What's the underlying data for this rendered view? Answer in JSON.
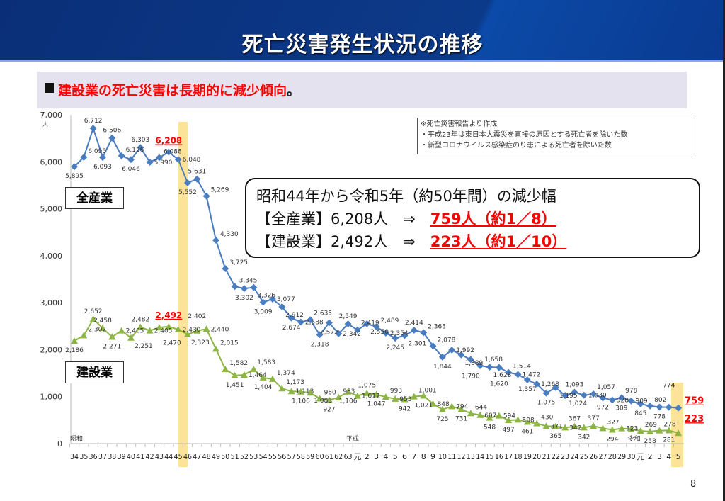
{
  "header": {
    "title": "死亡災害発生状況の推移"
  },
  "subtitle": {
    "text": "建設業の死亡災害は長期的に減少傾向",
    "period": "。"
  },
  "note": {
    "lines": [
      "※死亡災害報告より作成",
      "・平成23年は東日本大震災を直接の原因とする死亡者を除いた数",
      "・新型コロナウイルス感染症のり患による死亡者を除いた数"
    ]
  },
  "series_labels": {
    "all": "全産業",
    "construction": "建設業"
  },
  "summary": {
    "line1": "昭和44年から令和5年（約50年間）の減少幅",
    "line2_prefix": "【全産業】6,208人　⇒　",
    "line2_highlight": "759人（約1／8）",
    "line3_prefix": "【建設業】2,492人　⇒　",
    "line3_highlight": "223人（約1／10）"
  },
  "page_number": "8",
  "colors": {
    "all": "#4a7cc0",
    "construction": "#8db543",
    "highlight": "#fde29a",
    "accent": "#ff0000"
  },
  "chart_data": {
    "type": "line",
    "title": "死亡災害発生状況の推移",
    "ylabel": "人",
    "ylim": [
      0,
      7000
    ],
    "yticks": [
      "0",
      "1,000",
      "2,000",
      "3,000",
      "4,000",
      "5,000",
      "6,000",
      "7,000"
    ],
    "era_labels": [
      {
        "label": "昭和",
        "index": 0
      },
      {
        "label": "平成",
        "index": 30
      },
      {
        "label": "令和",
        "index": 60
      }
    ],
    "categories": [
      "34",
      "35",
      "36",
      "37",
      "38",
      "39",
      "40",
      "41",
      "42",
      "43",
      "44",
      "45",
      "46",
      "47",
      "48",
      "49",
      "50",
      "51",
      "52",
      "53",
      "54",
      "55",
      "56",
      "57",
      "58",
      "59",
      "60",
      "61",
      "62",
      "63",
      "元",
      "2",
      "3",
      "4",
      "5",
      "6",
      "7",
      "8",
      "9",
      "10",
      "11",
      "12",
      "13",
      "14",
      "15",
      "16",
      "17",
      "18",
      "19",
      "20",
      "21",
      "22",
      "23",
      "24",
      "25",
      "26",
      "27",
      "28",
      "29",
      "30",
      "元",
      "2",
      "3",
      "4",
      "5"
    ],
    "series": [
      {
        "name": "全産業",
        "values": [
          5895,
          6095,
          6712,
          6093,
          6506,
          6126,
          6046,
          6303,
          5990,
          6088,
          6208,
          6048,
          5552,
          5631,
          5269,
          4330,
          3725,
          3345,
          3302,
          3326,
          3009,
          3077,
          2912,
          2674,
          2588,
          2635,
          2318,
          2572,
          2342,
          2549,
          2419,
          2550,
          2489,
          2354,
          2245,
          2301,
          2414,
          2363,
          2078,
          1844,
          1992,
          1889,
          1790,
          1658,
          1628,
          1620,
          1514,
          1472,
          1357,
          1268,
          1075,
          1195,
          1024,
          1093,
          1030,
          1057,
          972,
          928,
          978,
          909,
          845,
          802,
          778,
          774,
          759
        ]
      },
      {
        "name": "建設業",
        "values": [
          2186,
          2302,
          2652,
          2458,
          2271,
          2405,
          2251,
          2482,
          2405,
          2470,
          2492,
          2430,
          2323,
          2402,
          2440,
          2015,
          1582,
          1451,
          1464,
          1583,
          1404,
          1374,
          1173,
          1113,
          1106,
          1083,
          960,
          927,
          983,
          1106,
          1017,
          1075,
          1047,
          993,
          953,
          942,
          1001,
          1021,
          848,
          725,
          794,
          731,
          644,
          607,
          548,
          594,
          497,
          508,
          461,
          430,
          371,
          365,
          342,
          367,
          342,
          377,
          327,
          294,
          323,
          309,
          269,
          258,
          278,
          281,
          223
        ]
      }
    ],
    "highlighted": [
      {
        "index": 10,
        "all": "6,208",
        "construction": "2,492"
      },
      {
        "index": 64,
        "all": "759",
        "construction": "223"
      }
    ]
  }
}
